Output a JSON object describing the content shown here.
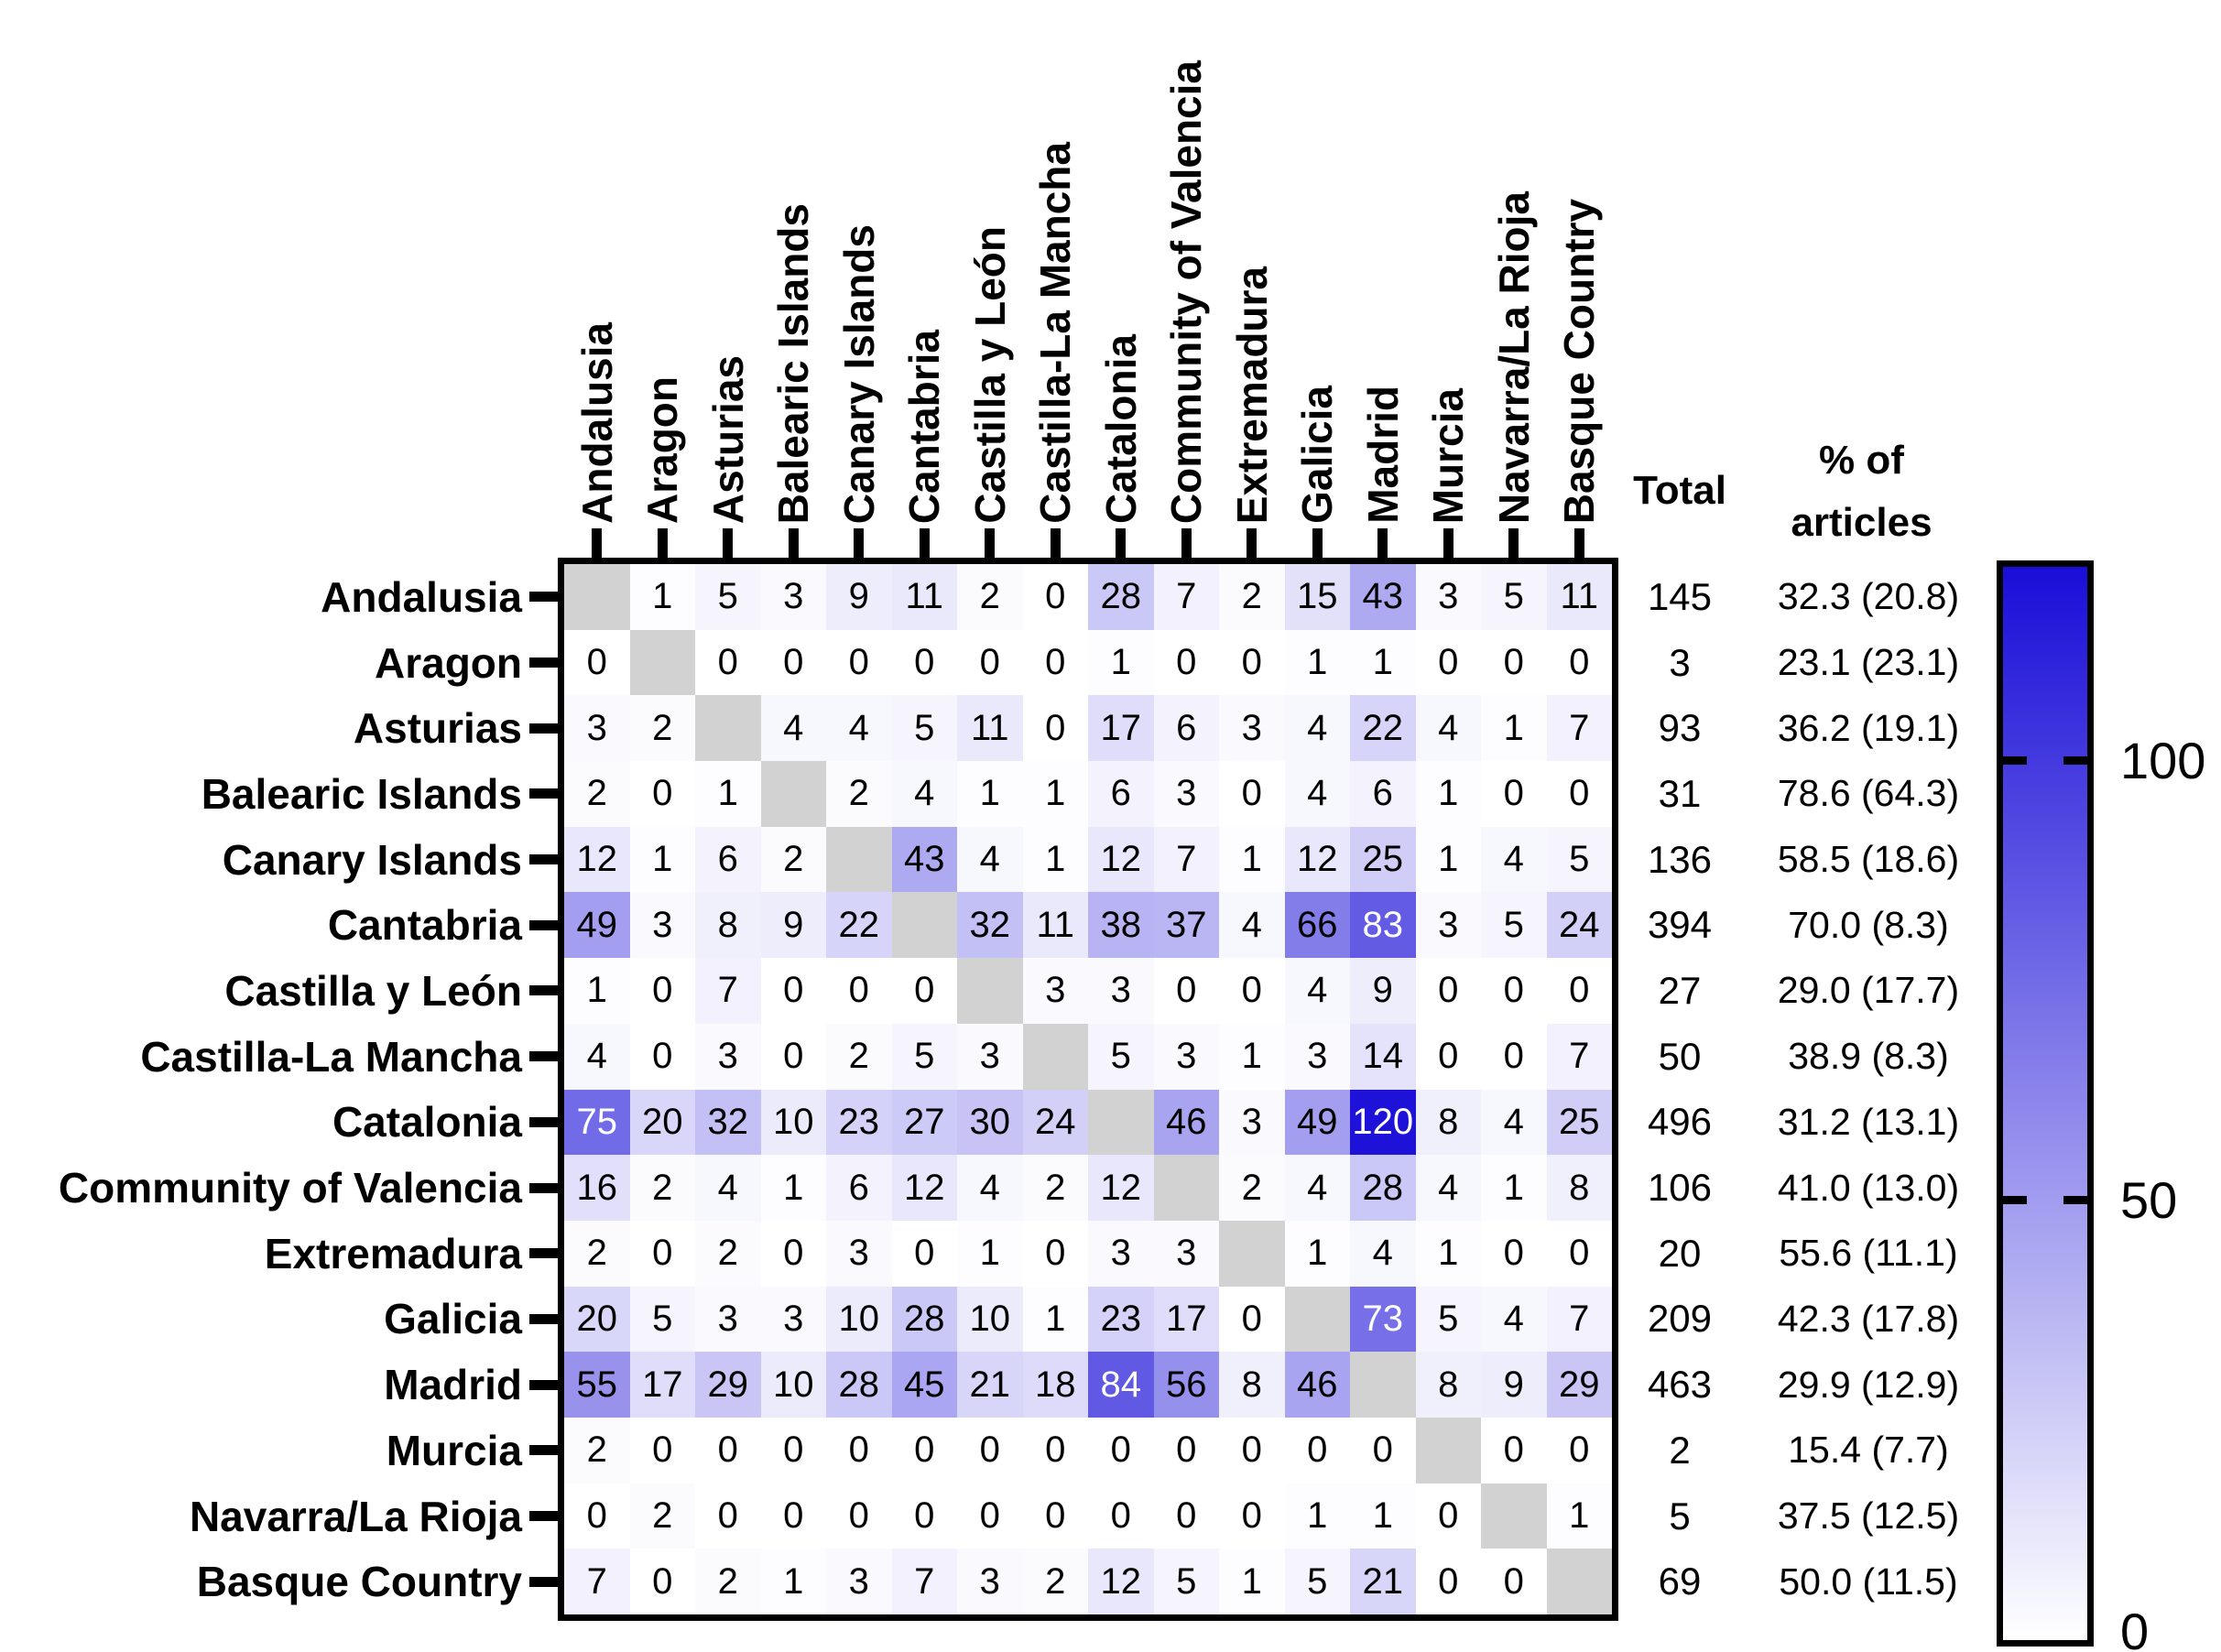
{
  "chart_data": {
    "type": "heatmap",
    "title": "",
    "categories": [
      "Andalusia",
      "Aragon",
      "Asturias",
      "Balearic Islands",
      "Canary Islands",
      "Cantabria",
      "Castilla y León",
      "Castilla-La Mancha",
      "Catalonia",
      "Community of Valencia",
      "Extremadura",
      "Galicia",
      "Madrid",
      "Murcia",
      "Navarra/La Rioja",
      "Basque Country"
    ],
    "matrix": [
      [
        null,
        1,
        5,
        3,
        9,
        11,
        2,
        0,
        28,
        7,
        2,
        15,
        43,
        3,
        5,
        11
      ],
      [
        0,
        null,
        0,
        0,
        0,
        0,
        0,
        0,
        1,
        0,
        0,
        1,
        1,
        0,
        0,
        0
      ],
      [
        3,
        2,
        null,
        4,
        4,
        5,
        11,
        0,
        17,
        6,
        3,
        4,
        22,
        4,
        1,
        7
      ],
      [
        2,
        0,
        1,
        null,
        2,
        4,
        1,
        1,
        6,
        3,
        0,
        4,
        6,
        1,
        0,
        0
      ],
      [
        12,
        1,
        6,
        2,
        null,
        43,
        4,
        1,
        12,
        7,
        1,
        12,
        25,
        1,
        4,
        5
      ],
      [
        49,
        3,
        8,
        9,
        22,
        null,
        32,
        11,
        38,
        37,
        4,
        66,
        83,
        3,
        5,
        24
      ],
      [
        1,
        0,
        7,
        0,
        0,
        0,
        null,
        3,
        3,
        0,
        0,
        4,
        9,
        0,
        0,
        0
      ],
      [
        4,
        0,
        3,
        0,
        2,
        5,
        3,
        null,
        5,
        3,
        1,
        3,
        14,
        0,
        0,
        7
      ],
      [
        75,
        20,
        32,
        10,
        23,
        27,
        30,
        24,
        null,
        46,
        3,
        49,
        120,
        8,
        4,
        25
      ],
      [
        16,
        2,
        4,
        1,
        6,
        12,
        4,
        2,
        12,
        null,
        2,
        4,
        28,
        4,
        1,
        8
      ],
      [
        2,
        0,
        2,
        0,
        3,
        0,
        1,
        0,
        3,
        3,
        null,
        1,
        4,
        1,
        0,
        0
      ],
      [
        20,
        5,
        3,
        3,
        10,
        28,
        10,
        1,
        23,
        17,
        0,
        null,
        73,
        5,
        4,
        7
      ],
      [
        55,
        17,
        29,
        10,
        28,
        45,
        21,
        18,
        84,
        56,
        8,
        46,
        null,
        8,
        9,
        29
      ],
      [
        2,
        0,
        0,
        0,
        0,
        0,
        0,
        0,
        0,
        0,
        0,
        0,
        0,
        null,
        0,
        0
      ],
      [
        0,
        2,
        0,
        0,
        0,
        0,
        0,
        0,
        0,
        0,
        0,
        1,
        1,
        0,
        null,
        1
      ],
      [
        7,
        0,
        2,
        1,
        3,
        7,
        3,
        2,
        12,
        5,
        1,
        5,
        21,
        0,
        0,
        null
      ]
    ],
    "totals": [
      145,
      3,
      93,
      31,
      136,
      394,
      27,
      50,
      496,
      106,
      20,
      209,
      463,
      2,
      5,
      69
    ],
    "pct_of_articles": [
      "32.3 (20.8)",
      "23.1 (23.1)",
      "36.2 (19.1)",
      "78.6 (64.3)",
      "58.5 (18.6)",
      "70.0 (8.3)",
      "29.0 (17.7)",
      "38.9 (8.3)",
      "31.2 (13.1)",
      "41.0 (13.0)",
      "55.6 (11.1)",
      "42.3 (17.8)",
      "29.9 (12.9)",
      "15.4 (7.7)",
      "37.5 (12.5)",
      "50.0 (11.5)"
    ],
    "column_headers": {
      "total": "Total",
      "pct_line1": "% of",
      "pct_line2": "articles"
    },
    "colorbar": {
      "vmax": 122,
      "tick_values": [
        100,
        50,
        0
      ],
      "tick_labels": [
        "100",
        "50",
        "0"
      ],
      "color_low": "#ffffff",
      "color_high": "#1a0ed8"
    },
    "diagonal_color": "#d2d2d2",
    "cell_text_white_threshold": 70
  }
}
